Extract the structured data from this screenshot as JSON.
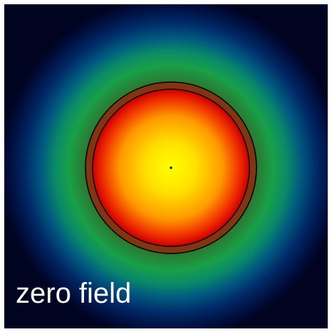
{
  "label": "zero field"
}
